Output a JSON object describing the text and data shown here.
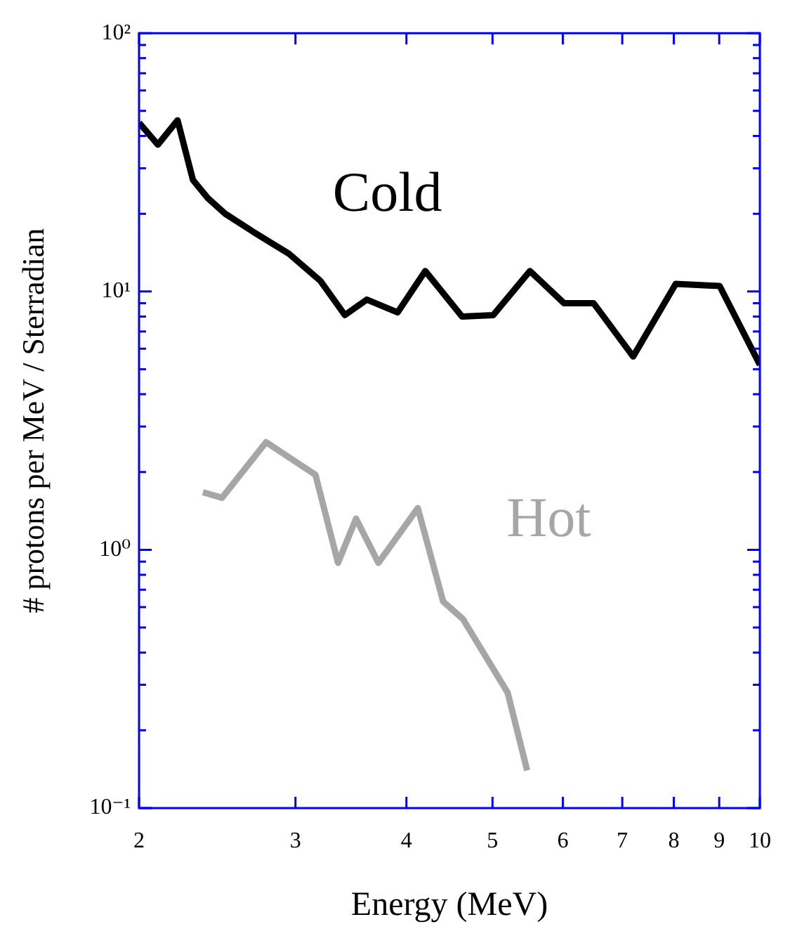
{
  "chart_data": {
    "type": "line",
    "xlabel": "Energy (MeV)",
    "ylabel": "# protons per MeV / Sterradian",
    "log": "xy",
    "grid": false,
    "legend": false,
    "marker": "none",
    "line_style": "solid",
    "xlim": [
      2,
      10
    ],
    "xticks": [
      2,
      3,
      4,
      5,
      6,
      7,
      8,
      9,
      10
    ],
    "ylim": [
      0.1,
      100
    ],
    "yticks": [
      {
        "value": 0.1,
        "label": "10⁻¹"
      },
      {
        "value": 0.2,
        "label": null
      },
      {
        "value": 0.3,
        "label": null
      },
      {
        "value": 0.4,
        "label": null
      },
      {
        "value": 0.5,
        "label": null
      },
      {
        "value": 0.6,
        "label": null
      },
      {
        "value": 0.7,
        "label": null
      },
      {
        "value": 0.8,
        "label": null
      },
      {
        "value": 0.9,
        "label": null
      },
      {
        "value": 1,
        "label": "10⁰"
      },
      {
        "value": 2,
        "label": null
      },
      {
        "value": 3,
        "label": null
      },
      {
        "value": 4,
        "label": null
      },
      {
        "value": 5,
        "label": null
      },
      {
        "value": 6,
        "label": null
      },
      {
        "value": 7,
        "label": null
      },
      {
        "value": 8,
        "label": null
      },
      {
        "value": 9,
        "label": null
      },
      {
        "value": 10,
        "label": "10¹"
      },
      {
        "value": 20,
        "label": null
      },
      {
        "value": 30,
        "label": null
      },
      {
        "value": 40,
        "label": null
      },
      {
        "value": 50,
        "label": null
      },
      {
        "value": 60,
        "label": null
      },
      {
        "value": 70,
        "label": null
      },
      {
        "value": 80,
        "label": null
      },
      {
        "value": 90,
        "label": null
      },
      {
        "value": 100,
        "label": "10²"
      }
    ],
    "series": [
      {
        "name": "Cold",
        "color": "#000000",
        "x": [
          2,
          2.1,
          2.21,
          2.3,
          2.39,
          2.5,
          2.69,
          2.95,
          3.2,
          3.41,
          3.61,
          3.91,
          4.2,
          4.62,
          5.01,
          5.51,
          6.02,
          6.5,
          7.2,
          8.04,
          9.01,
          10
        ],
        "values": [
          45,
          37,
          46,
          27,
          23,
          20,
          17,
          14,
          11,
          8.1,
          9.3,
          8.3,
          12,
          8,
          8.1,
          12,
          9,
          9,
          5.6,
          10.7,
          10.5,
          5.2
        ]
      },
      {
        "name": "Hot",
        "color": "#a6a6a6",
        "x": [
          2.36,
          2.48,
          2.78,
          3.16,
          3.35,
          3.51,
          3.72,
          4.12,
          4.4,
          4.63,
          5.2,
          5.47
        ],
        "values": [
          1.67,
          1.59,
          2.61,
          1.95,
          0.89,
          1.32,
          0.89,
          1.45,
          0.63,
          0.54,
          0.28,
          0.14
        ]
      }
    ]
  }
}
